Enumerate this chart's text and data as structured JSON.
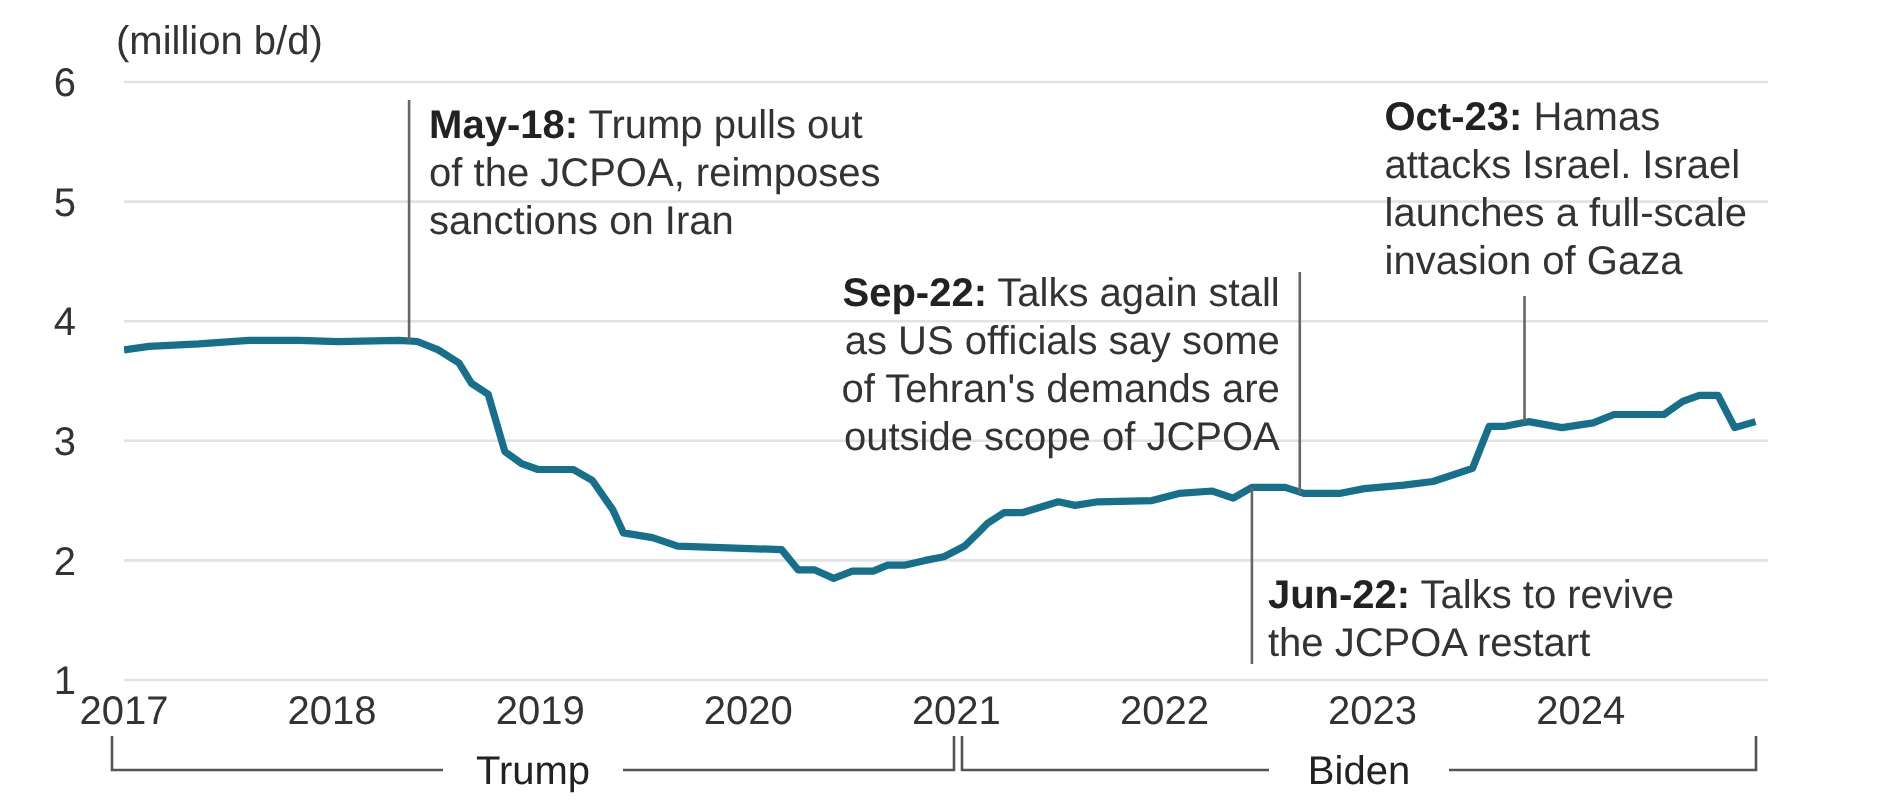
{
  "chart_data": {
    "type": "line",
    "ylabel": "(million b/d)",
    "x": [
      2017.0,
      2017.12,
      2017.36,
      2017.6,
      2017.84,
      2018.03,
      2018.32,
      2018.41,
      2018.51,
      2018.61,
      2018.67,
      2018.75,
      2018.83,
      2018.91,
      2018.99,
      2019.16,
      2019.25,
      2019.35,
      2019.4,
      2019.54,
      2019.66,
      2020.16,
      2020.24,
      2020.32,
      2020.41,
      2020.5,
      2020.6,
      2020.67,
      2020.75,
      2020.85,
      2020.94,
      2021.04,
      2021.11,
      2021.15,
      2021.23,
      2021.32,
      2021.49,
      2021.57,
      2021.68,
      2021.94,
      2022.07,
      2022.23,
      2022.33,
      2022.42,
      2022.58,
      2022.67,
      2022.84,
      2022.96,
      2023.15,
      2023.29,
      2023.48,
      2023.56,
      2023.63,
      2023.75,
      2023.91,
      2024.06,
      2024.16,
      2024.4,
      2024.49,
      2024.57,
      2024.66,
      2024.74,
      2024.84
    ],
    "series": [
      {
        "color": "#16708b",
        "values": [
          3.76,
          3.79,
          3.81,
          3.84,
          3.84,
          3.83,
          3.84,
          3.83,
          3.76,
          3.65,
          3.48,
          3.39,
          2.91,
          2.81,
          2.76,
          2.76,
          2.67,
          2.42,
          2.23,
          2.19,
          2.12,
          2.09,
          1.92,
          1.92,
          1.85,
          1.91,
          1.91,
          1.96,
          1.96,
          2.0,
          2.03,
          2.12,
          2.24,
          2.31,
          2.4,
          2.4,
          2.49,
          2.46,
          2.49,
          2.5,
          2.56,
          2.58,
          2.52,
          2.61,
          2.61,
          2.56,
          2.56,
          2.6,
          2.63,
          2.66,
          2.77,
          3.12,
          3.12,
          3.16,
          3.11,
          3.15,
          3.22,
          3.22,
          3.33,
          3.38,
          3.38,
          3.11,
          3.16
        ]
      }
    ],
    "xlim": [
      2017,
      2024.9
    ],
    "xticks": [
      2017,
      2018,
      2019,
      2020,
      2021,
      2022,
      2023,
      2024
    ],
    "ylim": [
      1,
      6
    ],
    "yticks": [
      1,
      2,
      3,
      4,
      5,
      6
    ],
    "grid": "y",
    "annotations": [
      {
        "text": "May-18: Trump pulls out\nof the JCPOA, reimposes\nsanctions on Iran",
        "x": 2018.37,
        "y": 3.83
      },
      {
        "text": "Sep-22: Talks again stall\nas US officials say some\nof Tehran's demands are\noutside scope of JCPOA",
        "x": 2022.65,
        "y": 2.56
      },
      {
        "text": "Jun-22: Talks to revive\nthe JCPOA restart",
        "x": 2022.42,
        "y": 2.61
      },
      {
        "text": "Oct-23: Hamas\nattacks Israel. Israel\nlaunches a full-scale\ninvasion of Gaza",
        "x": 2023.73,
        "y": 3.16
      },
      "Trump",
      "Biden"
    ]
  }
}
